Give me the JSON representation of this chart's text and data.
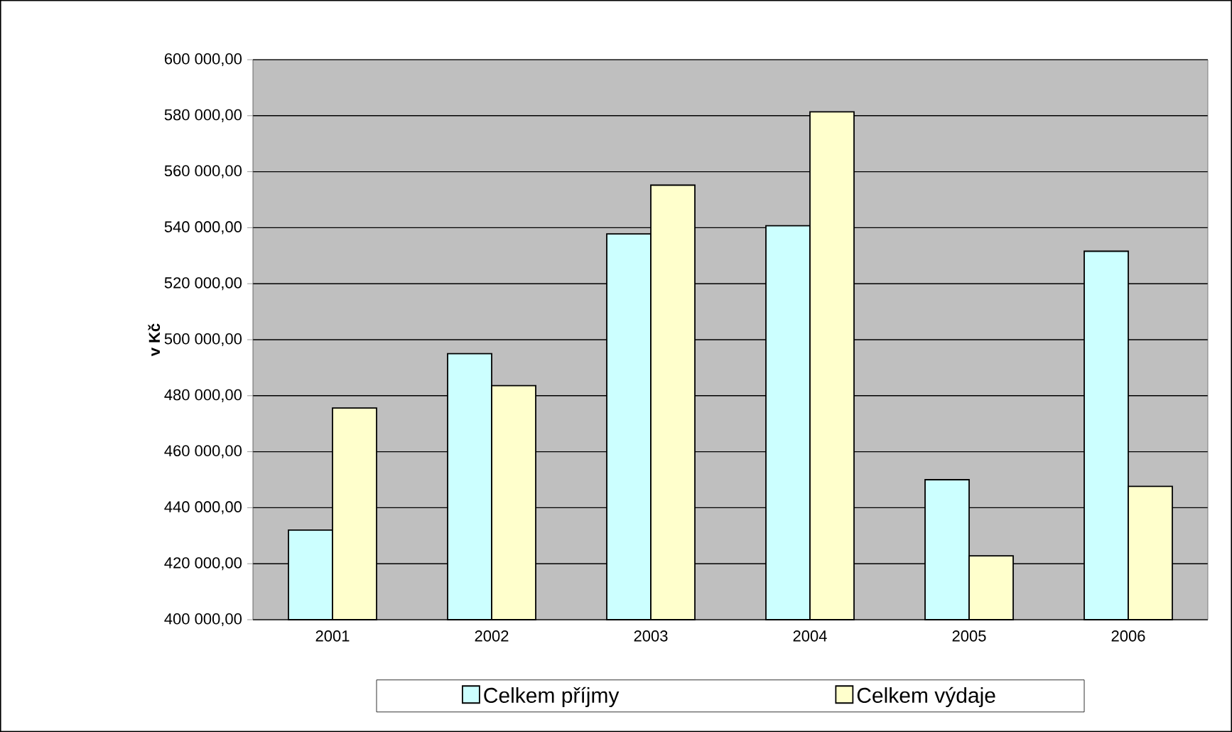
{
  "chart_data": {
    "type": "bar",
    "ylabel": "v Kč",
    "categories": [
      "2001",
      "2002",
      "2003",
      "2004",
      "2005",
      "2006"
    ],
    "series": [
      {
        "name": "Celkem příjmy",
        "color": "#ccffff",
        "values": [
          432000,
          495000,
          537800,
          540700,
          450000,
          531600
        ]
      },
      {
        "name": "Celkem výdaje",
        "color": "#ffffcc",
        "values": [
          475600,
          483600,
          555200,
          581400,
          422800,
          447600
        ]
      }
    ],
    "ylim": [
      400000,
      600000
    ],
    "yticks": [
      {
        "value": 400000,
        "label": "400 000,00"
      },
      {
        "value": 420000,
        "label": "420 000,00"
      },
      {
        "value": 440000,
        "label": "440 000,00"
      },
      {
        "value": 460000,
        "label": "460 000,00"
      },
      {
        "value": 480000,
        "label": "480 000,00"
      },
      {
        "value": 500000,
        "label": "500 000,00"
      },
      {
        "value": 520000,
        "label": "520 000,00"
      },
      {
        "value": 540000,
        "label": "540 000,00"
      },
      {
        "value": 560000,
        "label": "560 000,00"
      },
      {
        "value": 580000,
        "label": "580 000,00"
      },
      {
        "value": 600000,
        "label": "600 000,00"
      }
    ],
    "grid": "y",
    "legend": "bottom"
  }
}
